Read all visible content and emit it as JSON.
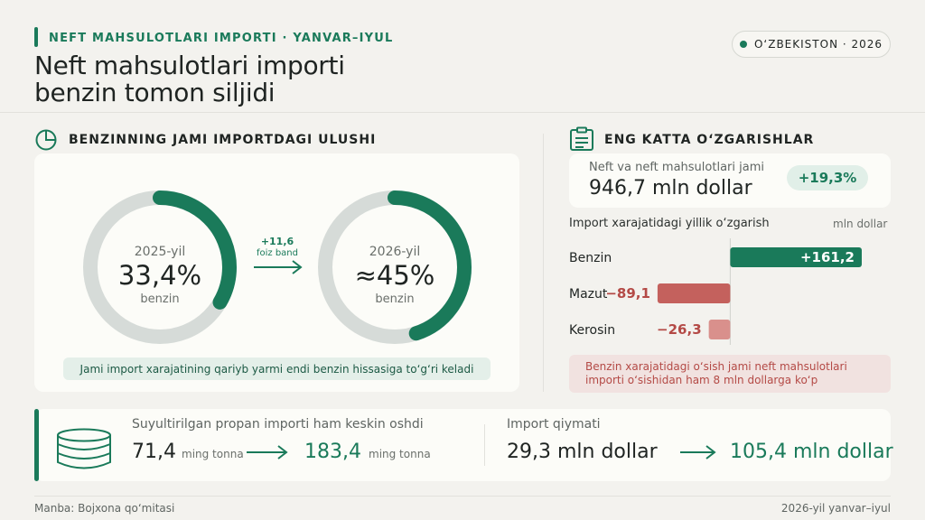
{
  "header": {
    "kicker": "NEFT MAHSULOTLARI IMPORTI · YANVAR–IYUL",
    "title_line1": "Neft mahsulotlari importi",
    "title_line2": "benzin tomon siljidi",
    "badge": "O‘ZBEKISTON · 2026",
    "accent_color": "#1a7a5a"
  },
  "share_section": {
    "title": "BENZINNING JAMI IMPORTDAGI ULUSHI",
    "icon": "pie-chart-icon",
    "donut_2025": {
      "year": "2025-yil",
      "value": "33,4%",
      "label": "benzin",
      "share": 33.4
    },
    "donut_2026": {
      "year": "2026-yil",
      "value": "≈45%",
      "label": "benzin",
      "share": 45
    },
    "change": {
      "value": "+11,6",
      "unit": "foiz band"
    },
    "note": "Jami import xarajatining qariyb yarmi endi benzin hissasiga to‘g‘ri keladi"
  },
  "changes_section": {
    "title": "ENG KATTA O‘ZGARISHLAR",
    "icon": "clipboard-icon",
    "total": {
      "label": "Neft va neft mahsulotlari jami",
      "value": "946,7 mln dollar",
      "change": "+19,3%"
    },
    "chart_subtitle": "Import xarajatidagi yillik o‘zgarish",
    "chart_unit": "mln dollar",
    "note": "Benzin xarajatidagi o‘sish jami neft mahsulotlari importi o‘sishidan ham 8 mln dollarga ko‘p"
  },
  "chart_data": {
    "type": "bar",
    "orientation": "horizontal",
    "categories": [
      "Benzin",
      "Mazut",
      "Kerosin"
    ],
    "values": [
      161.2,
      -89.1,
      -26.3
    ],
    "labels": [
      "+161,2",
      "−89,1",
      "−26,3"
    ],
    "colors": [
      "#1a7a5a",
      "#c4615d",
      "#d9908c"
    ],
    "title": "",
    "xlabel": "mln dollar",
    "ylabel": "",
    "xlim": [
      -120,
      190
    ]
  },
  "propane": {
    "icon": "database-icon",
    "title": "Suyultirilgan propan importi ham keskin oshdi",
    "volume_from": "71,4",
    "volume_from_unit": "ming tonna",
    "volume_to": "183,4",
    "volume_to_unit": "ming tonna",
    "value_label": "Import qiymati",
    "value_from": "29,3 mln dollar",
    "value_to": "105,4 mln dollar"
  },
  "footer": {
    "source": "Manba: Bojxona qo‘mitasi",
    "period": "2026-yil yanvar–iyul"
  }
}
